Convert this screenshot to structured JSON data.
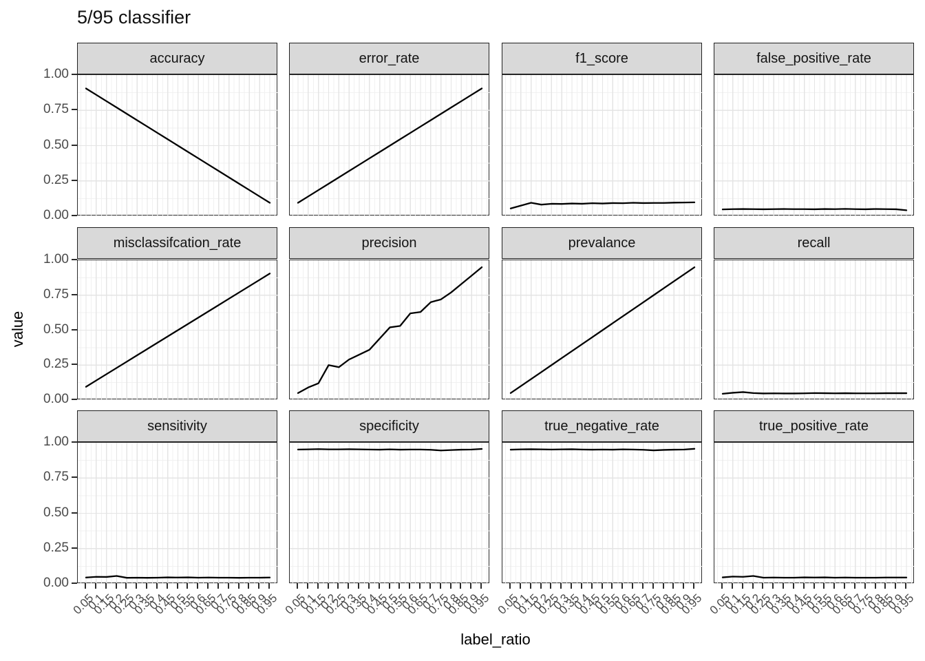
{
  "title": "5/95 classifier",
  "axes": {
    "x_label": "label_ratio",
    "y_label": "value",
    "x_ticks": [
      "0.05",
      "0.1",
      "0.15",
      "0.2",
      "0.25",
      "0.3",
      "0.35",
      "0.4",
      "0.45",
      "0.5",
      "0.55",
      "0.6",
      "0.65",
      "0.7",
      "0.75",
      "0.8",
      "0.85",
      "0.9",
      "0.95"
    ],
    "y_ticks": [
      "1.00",
      "0.75",
      "0.50",
      "0.25",
      "0.00"
    ]
  },
  "colors": {
    "line": "#000000",
    "strip_fill": "#d9d9d9",
    "panel_border": "#2a2a2a",
    "grid_major": "#e4e4e4",
    "grid_minor": "#f1f1f1",
    "tick_text": "#4a4a4a",
    "tick_mark": "#2a2a2a"
  },
  "chart_data": {
    "type": "line",
    "title": "5/95 classifier",
    "xlabel": "label_ratio",
    "ylabel": "value",
    "ylim": [
      0,
      1
    ],
    "grid": true,
    "legend": "none",
    "facet_layout": {
      "rows": 3,
      "cols": 4
    },
    "x": [
      0.05,
      0.1,
      0.15,
      0.2,
      0.25,
      0.3,
      0.35,
      0.4,
      0.45,
      0.5,
      0.55,
      0.6,
      0.65,
      0.7,
      0.75,
      0.8,
      0.85,
      0.9,
      0.95
    ],
    "facets": [
      {
        "label": "accuracy",
        "values": [
          0.905,
          0.86,
          0.815,
          0.77,
          0.725,
          0.68,
          0.635,
          0.59,
          0.545,
          0.5,
          0.455,
          0.41,
          0.365,
          0.32,
          0.275,
          0.23,
          0.185,
          0.14,
          0.095
        ]
      },
      {
        "label": "error_rate",
        "values": [
          0.095,
          0.14,
          0.185,
          0.23,
          0.275,
          0.32,
          0.365,
          0.41,
          0.455,
          0.5,
          0.545,
          0.59,
          0.635,
          0.68,
          0.725,
          0.77,
          0.815,
          0.86,
          0.905
        ]
      },
      {
        "label": "f1_score",
        "values": [
          0.055,
          0.075,
          0.095,
          0.082,
          0.088,
          0.087,
          0.09,
          0.088,
          0.092,
          0.09,
          0.093,
          0.092,
          0.095,
          0.093,
          0.094,
          0.094,
          0.096,
          0.097,
          0.098
        ]
      },
      {
        "label": "false_positive_rate",
        "values": [
          0.048,
          0.05,
          0.051,
          0.05,
          0.049,
          0.05,
          0.051,
          0.05,
          0.05,
          0.049,
          0.051,
          0.05,
          0.052,
          0.05,
          0.049,
          0.051,
          0.05,
          0.049,
          0.042
        ]
      },
      {
        "label": "misclassifcation_rate",
        "values": [
          0.095,
          0.14,
          0.185,
          0.23,
          0.275,
          0.32,
          0.365,
          0.41,
          0.455,
          0.5,
          0.545,
          0.59,
          0.635,
          0.68,
          0.725,
          0.77,
          0.815,
          0.86,
          0.905
        ]
      },
      {
        "label": "precision",
        "values": [
          0.05,
          0.09,
          0.12,
          0.25,
          0.235,
          0.29,
          0.325,
          0.36,
          0.44,
          0.52,
          0.53,
          0.62,
          0.63,
          0.7,
          0.72,
          0.77,
          0.83,
          0.89,
          0.95
        ]
      },
      {
        "label": "prevalance",
        "values": [
          0.05,
          0.1,
          0.15,
          0.2,
          0.25,
          0.3,
          0.35,
          0.4,
          0.45,
          0.5,
          0.55,
          0.6,
          0.65,
          0.7,
          0.75,
          0.8,
          0.85,
          0.9,
          0.95
        ]
      },
      {
        "label": "recall",
        "values": [
          0.045,
          0.052,
          0.057,
          0.05,
          0.047,
          0.048,
          0.047,
          0.047,
          0.048,
          0.05,
          0.049,
          0.048,
          0.049,
          0.048,
          0.048,
          0.048,
          0.049,
          0.049,
          0.049
        ]
      },
      {
        "label": "sensitivity",
        "values": [
          0.045,
          0.05,
          0.049,
          0.056,
          0.043,
          0.044,
          0.043,
          0.044,
          0.046,
          0.045,
          0.046,
          0.044,
          0.045,
          0.044,
          0.044,
          0.043,
          0.044,
          0.044,
          0.045
        ]
      },
      {
        "label": "specificity",
        "values": [
          0.952,
          0.953,
          0.955,
          0.953,
          0.953,
          0.954,
          0.953,
          0.952,
          0.951,
          0.953,
          0.951,
          0.952,
          0.952,
          0.95,
          0.945,
          0.948,
          0.951,
          0.952,
          0.956
        ]
      },
      {
        "label": "true_negative_rate",
        "values": [
          0.951,
          0.953,
          0.954,
          0.953,
          0.952,
          0.953,
          0.954,
          0.952,
          0.951,
          0.952,
          0.951,
          0.953,
          0.952,
          0.95,
          0.946,
          0.949,
          0.951,
          0.952,
          0.957
        ]
      },
      {
        "label": "true_positive_rate",
        "values": [
          0.046,
          0.052,
          0.05,
          0.056,
          0.044,
          0.045,
          0.044,
          0.044,
          0.046,
          0.045,
          0.046,
          0.044,
          0.045,
          0.044,
          0.044,
          0.044,
          0.045,
          0.045,
          0.045
        ]
      }
    ]
  }
}
